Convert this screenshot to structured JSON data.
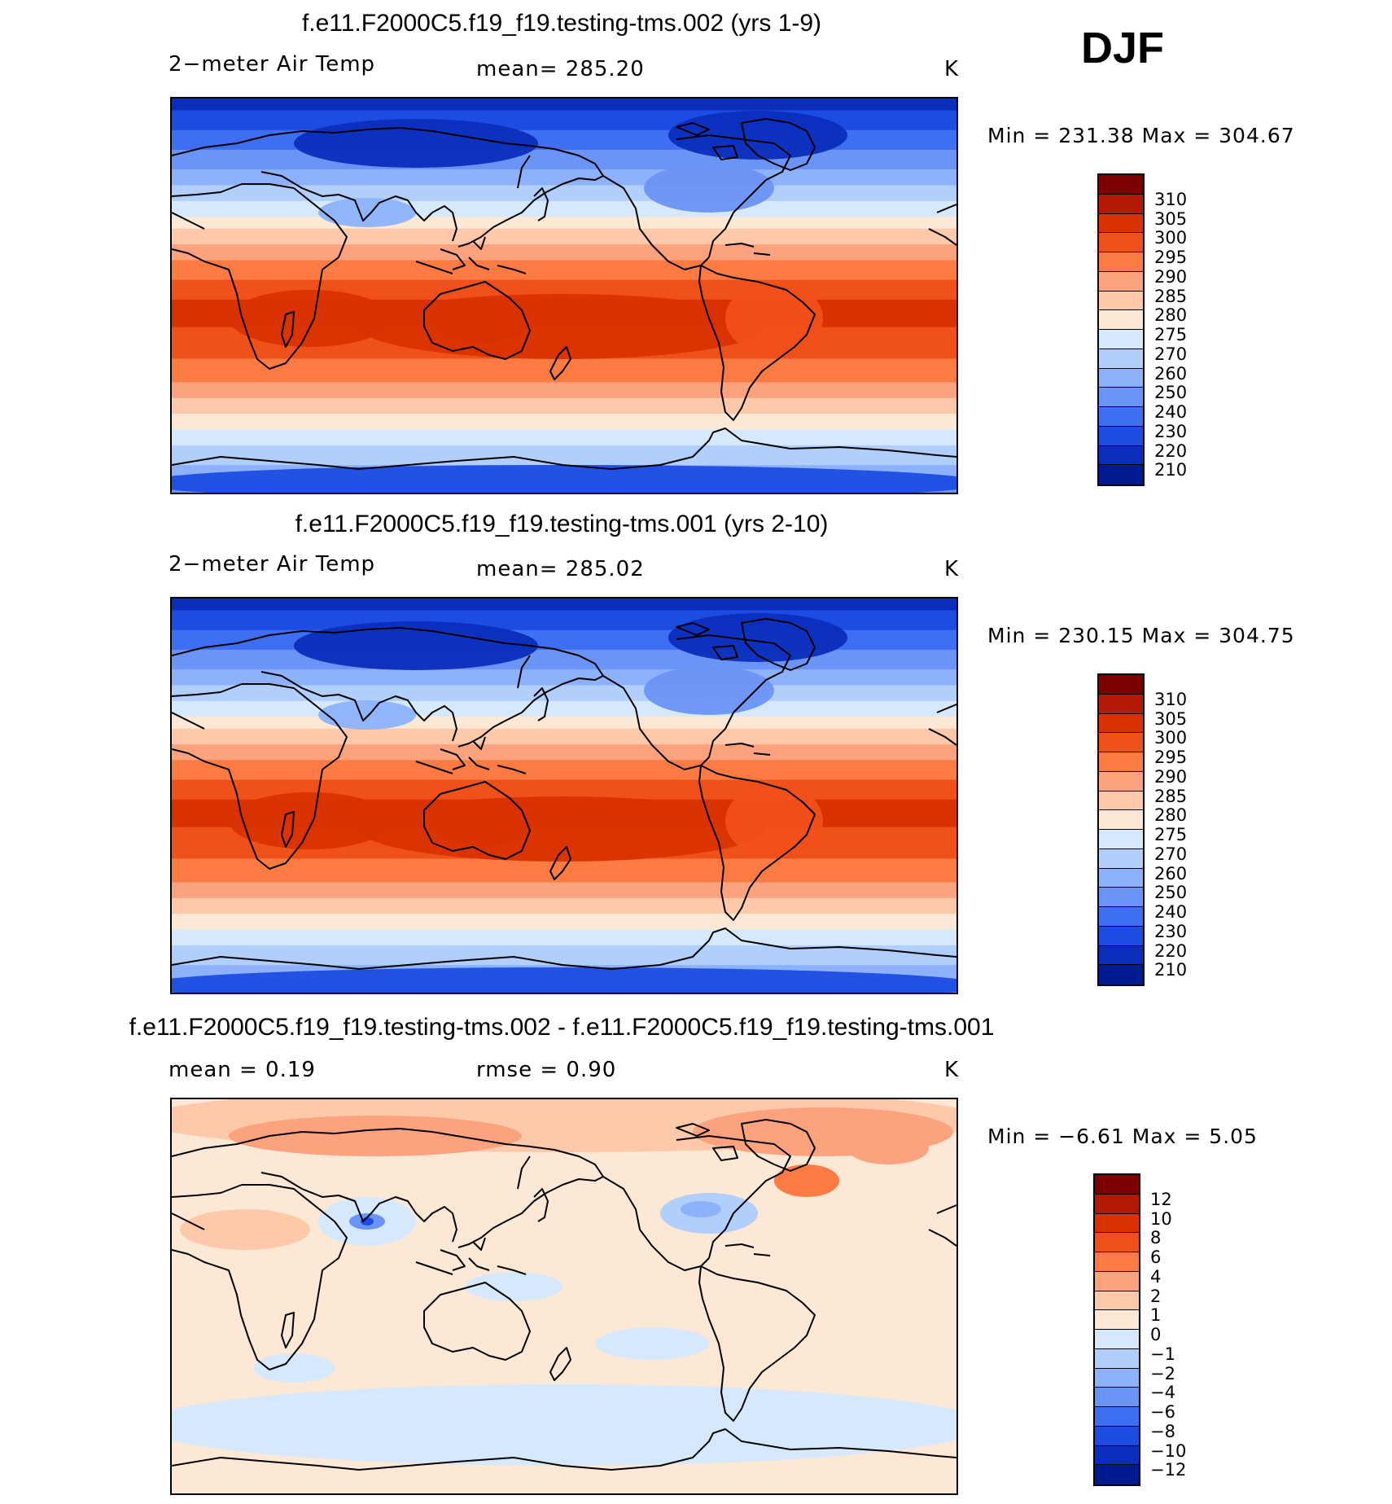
{
  "season_label": "DJF",
  "palette": {
    "abs_colors": [
      "#7d0000",
      "#b31a05",
      "#d93100",
      "#f0501a",
      "#fc7b42",
      "#fda27e",
      "#fdc9aa",
      "#fde8d5",
      "#d6e9fc",
      "#b1cffc",
      "#8db2fb",
      "#6a94f6",
      "#3e6ff2",
      "#1d4ce3",
      "#0b2dbc",
      "#001a90"
    ],
    "diff_colors": [
      "#7d0000",
      "#b31a05",
      "#d93100",
      "#f0501a",
      "#fc7b42",
      "#fda27e",
      "#fdc9aa",
      "#fde8d5",
      "#d6e9fc",
      "#b1cffc",
      "#8db2fb",
      "#6a94f6",
      "#3e6ff2",
      "#1d4ce3",
      "#0b2dbc",
      "#001a90"
    ]
  },
  "chart_data": [
    {
      "type": "heatmap",
      "title": "f.e11.F2000C5.f19_f19.testing-tms.002 (yrs 1-9)",
      "left_label": "2−meter Air Temp",
      "center_label": "mean=  285.20",
      "units": "K",
      "min_max": "Min  =  231.38  Max  =  304.67",
      "colorbar_ticks": [
        "310",
        "305",
        "300",
        "295",
        "290",
        "285",
        "280",
        "275",
        "270",
        "260",
        "250",
        "240",
        "230",
        "220",
        "210"
      ]
    },
    {
      "type": "heatmap",
      "title": "f.e11.F2000C5.f19_f19.testing-tms.001 (yrs 2-10)",
      "left_label": "2−meter Air Temp",
      "center_label": "mean=  285.02",
      "units": "K",
      "min_max": "Min  =  230.15  Max  =  304.75",
      "colorbar_ticks": [
        "310",
        "305",
        "300",
        "295",
        "290",
        "285",
        "280",
        "275",
        "270",
        "260",
        "250",
        "240",
        "230",
        "220",
        "210"
      ]
    },
    {
      "type": "heatmap",
      "title": "f.e11.F2000C5.f19_f19.testing-tms.002 - f.e11.F2000C5.f19_f19.testing-tms.001",
      "left_label": "mean  =     0.19",
      "center_label": "rmse  =     0.90",
      "units": "K",
      "min_max": "Min  =    −6.61  Max  =     5.05",
      "colorbar_ticks": [
        "12",
        "10",
        "8",
        "6",
        "4",
        "2",
        "1",
        "0",
        "−1",
        "−2",
        "−4",
        "−6",
        "−8",
        "−10",
        "−12"
      ]
    }
  ]
}
